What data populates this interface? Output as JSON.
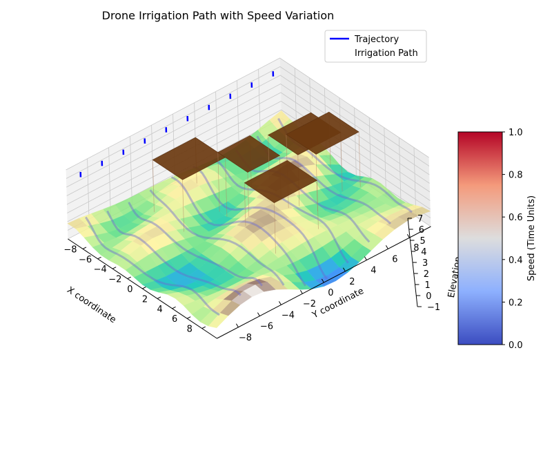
{
  "chart_data": {
    "type": "surface3d",
    "title": "Drone Irrigation Path with Speed Variation",
    "xlabel": "X coordinate",
    "ylabel": "Y coordinate",
    "zlabel": "Elevation",
    "xlim": [
      -10,
      10
    ],
    "ylim": [
      -10,
      10
    ],
    "zlim": [
      -1,
      7
    ],
    "x_ticks": [
      -8,
      -6,
      -4,
      -2,
      0,
      2,
      4,
      6,
      8
    ],
    "x_tick_labels": [
      "−8",
      "−6",
      "−4",
      "−2",
      "0",
      "2",
      "4",
      "6",
      "8"
    ],
    "y_ticks": [
      -8,
      -6,
      -4,
      -2,
      0,
      2,
      4,
      6,
      8
    ],
    "y_tick_labels": [
      "−8",
      "−6",
      "−4",
      "−2",
      "0",
      "2",
      "4",
      "6",
      "8"
    ],
    "z_ticks": [
      -1,
      0,
      1,
      2,
      3,
      4,
      5,
      6,
      7
    ],
    "z_tick_labels": [
      "−1",
      "0",
      "1",
      "2",
      "3",
      "4",
      "5",
      "6",
      "7"
    ],
    "terrain": {
      "colormap": "terrain",
      "z_range": [
        -1,
        2.5
      ]
    },
    "legend": {
      "placement": "top-right",
      "entries": [
        {
          "label": "Trajectory",
          "color": "#0000ff"
        },
        {
          "label": "Irrigation Path",
          "color": "#ffffff"
        }
      ]
    },
    "colorbar": {
      "label": "Speed (Time Units)",
      "colormap": "coolwarm",
      "range": [
        0,
        1
      ],
      "ticks": [
        0.0,
        0.2,
        0.4,
        0.6,
        0.8,
        1.0
      ],
      "tick_labels": [
        "0.0",
        "0.2",
        "0.4",
        "0.6",
        "0.8",
        "1.0"
      ]
    },
    "trajectory_passes": [
      {
        "y": -9
      },
      {
        "y": -7
      },
      {
        "y": -5
      },
      {
        "y": -3
      },
      {
        "y": -1
      },
      {
        "y": 1
      },
      {
        "y": 3
      },
      {
        "y": 5
      },
      {
        "y": 7
      },
      {
        "y": 9
      }
    ],
    "obstacles": [
      {
        "x": [
          -7,
          -3
        ],
        "y": [
          -4,
          0
        ],
        "z": 6,
        "color": "#6b3a10"
      },
      {
        "x": [
          -4,
          0
        ],
        "y": [
          0,
          3
        ],
        "z": 6,
        "color": "#6b3a10"
      },
      {
        "x": [
          -3,
          1
        ],
        "y": [
          4,
          8
        ],
        "z": 6,
        "color": "#6b3a10"
      },
      {
        "x": [
          -2,
          2
        ],
        "y": [
          5,
          9
        ],
        "z": 6,
        "color": "#6b3a10"
      },
      {
        "x": [
          1,
          5
        ],
        "y": [
          -1,
          3
        ],
        "z": 6,
        "color": "#6b3a10"
      }
    ]
  }
}
